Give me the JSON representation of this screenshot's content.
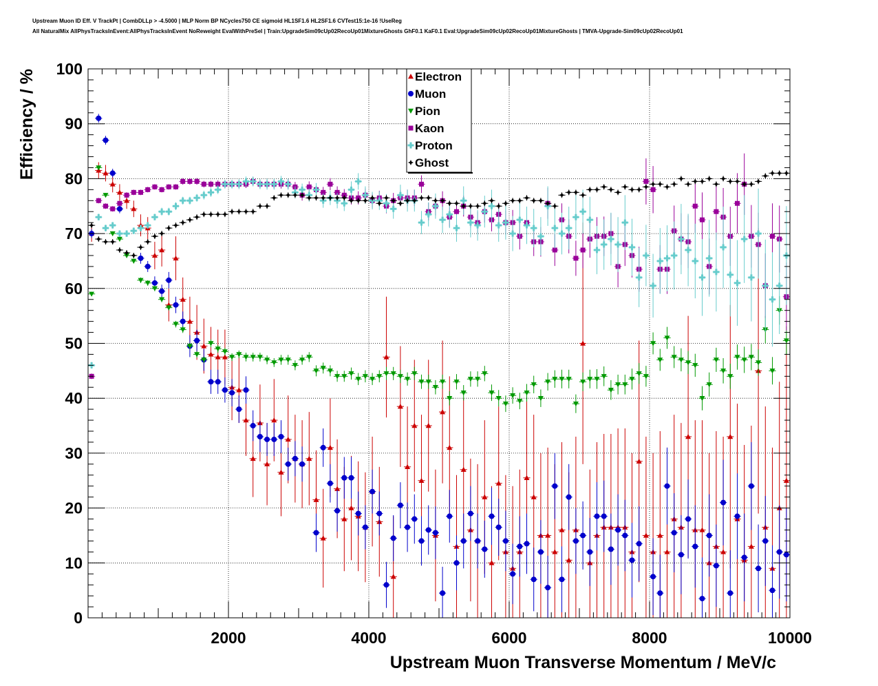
{
  "header": {
    "line1": "Upstream Muon ID Eff. V TrackPt | CombDLLp > -4.5000 | MLP Norm BP NCycles750 CE sigmoid HL1SF1.6 HL2SF1.6 CVTest15:1e-16 !UseReg",
    "line2": "All NaturalMix AllPhysTracksInEvent:AllPhysTracksInEvent NoReweight EvalWithPreSel | Train:UpgradeSim09cUp02RecoUp01MixtureGhosts GhF0.1 KaF0.1 Eval:UpgradeSim09cUp02RecoUp01MixtureGhosts | TMVA-Upgrade-Sim09cUp02RecoUp01"
  },
  "chart_data": {
    "type": "scatter",
    "xlabel": "Upstream Muon Transverse Momentum / MeV/c",
    "ylabel": "Efficiency / %",
    "xlim": [
      0,
      10000
    ],
    "ylim": [
      0,
      100
    ],
    "x_ticks": [
      2000,
      4000,
      6000,
      8000,
      10000
    ],
    "y_ticks": [
      0,
      10,
      20,
      30,
      40,
      50,
      60,
      70,
      80,
      90,
      100
    ],
    "grid": true,
    "legend_position": "top-center",
    "bin_width": 100,
    "x": [
      50,
      150,
      250,
      350,
      450,
      550,
      650,
      750,
      850,
      950,
      1050,
      1150,
      1250,
      1350,
      1450,
      1550,
      1650,
      1750,
      1850,
      1950,
      2050,
      2150,
      2250,
      2350,
      2450,
      2550,
      2650,
      2750,
      2850,
      2950,
      3050,
      3150,
      3250,
      3350,
      3450,
      3550,
      3650,
      3750,
      3850,
      3950,
      4050,
      4150,
      4250,
      4350,
      4450,
      4550,
      4650,
      4750,
      4850,
      4950,
      5050,
      5150,
      5250,
      5350,
      5450,
      5550,
      5650,
      5750,
      5850,
      5950,
      6050,
      6150,
      6250,
      6350,
      6450,
      6550,
      6650,
      6750,
      6850,
      6950,
      7050,
      7150,
      7250,
      7350,
      7450,
      7550,
      7650,
      7750,
      7850,
      7950,
      8050,
      8150,
      8250,
      8350,
      8450,
      8550,
      8650,
      8750,
      8850,
      8950,
      9050,
      9150,
      9250,
      9350,
      9450,
      9550,
      9650,
      9750,
      9850,
      9950
    ],
    "series": [
      {
        "name": "Electron",
        "color": "#cc0000",
        "marker": "triangle-up",
        "values": [
          70,
          81.5,
          81,
          79,
          77.5,
          76,
          74.5,
          71.5,
          71,
          66,
          67,
          57,
          65.5,
          58,
          54,
          52,
          49.5,
          48,
          47.5,
          47.5,
          42,
          41.5,
          36,
          29,
          35.5,
          28,
          36,
          26.5,
          32.5,
          29,
          28,
          29,
          21.5,
          14.5,
          31,
          23.5,
          18,
          20,
          18.5,
          16.5,
          23,
          17.5,
          47.5,
          7.5,
          38.5,
          27.5,
          35,
          25,
          35,
          15,
          37.5,
          31,
          13,
          27,
          16,
          14,
          22,
          10,
          24.5,
          12,
          9,
          12,
          25.5,
          22,
          15,
          15,
          12,
          16,
          10.5,
          16,
          50,
          10,
          15,
          16.5,
          16.5,
          16.5,
          16.5,
          12,
          28.5,
          15,
          12,
          15,
          12,
          18,
          16.5,
          33,
          16,
          16,
          10,
          13,
          12,
          33,
          18,
          10.5,
          13,
          45,
          16.5,
          9,
          20,
          25
        ],
        "err": [
          1.5,
          1.5,
          1.5,
          1.5,
          1.5,
          1.5,
          1.5,
          2,
          2,
          2.5,
          3,
          3,
          4,
          4,
          4.5,
          5,
          5,
          5,
          5,
          5,
          6,
          6,
          6.5,
          7,
          7,
          7.5,
          7.5,
          8,
          8,
          8,
          8,
          8.5,
          9,
          9,
          9,
          9,
          9.5,
          9.5,
          10,
          10,
          10,
          10,
          11,
          11,
          11,
          11,
          12,
          12,
          12,
          12,
          13,
          13,
          13,
          13,
          13,
          14,
          14,
          14,
          14,
          14,
          15,
          15,
          15,
          15,
          15,
          16,
          16,
          16,
          16,
          17,
          22,
          17,
          17,
          17,
          17,
          18,
          18,
          18,
          22,
          18,
          18,
          19,
          19,
          19,
          19,
          22,
          20,
          20,
          20,
          21,
          21,
          24,
          21,
          21,
          22,
          26,
          22,
          22,
          23,
          25
        ]
      },
      {
        "name": "Muon",
        "color": "#0000cc",
        "marker": "circle",
        "values": [
          70,
          91,
          87,
          81,
          74.5,
          null,
          null,
          65.5,
          64,
          61,
          59.5,
          61.5,
          57,
          54,
          49.5,
          50.5,
          47,
          43,
          43,
          41.5,
          41,
          38,
          41.5,
          35,
          33,
          32.5,
          32.5,
          33,
          28,
          29,
          28,
          null,
          15.5,
          31,
          24.5,
          19.5,
          25.5,
          25.5,
          19,
          16.5,
          23,
          19,
          6,
          14.5,
          20.5,
          16.5,
          18,
          14,
          16,
          15.5,
          4.5,
          18.5,
          10,
          14,
          19,
          14,
          12.5,
          18.5,
          16.5,
          14,
          8,
          13,
          13.5,
          7,
          12,
          5.5,
          24,
          7,
          22,
          14,
          15,
          12,
          18.5,
          18.5,
          12.5,
          16,
          15,
          10.5,
          13.5,
          null,
          7.5,
          4.5,
          24,
          15.5,
          11.5,
          18,
          13,
          3.5,
          15,
          9.5,
          21,
          4.5,
          18.5,
          11,
          24,
          9,
          14,
          5,
          12,
          11.5
        ],
        "err": [
          0.8,
          0.8,
          0.8,
          0.8,
          0.8,
          null,
          null,
          1,
          1,
          1.2,
          1.2,
          1.5,
          1.5,
          1.8,
          2,
          2,
          2,
          2.2,
          2.2,
          2.3,
          2.5,
          2.5,
          2.5,
          2.8,
          2.8,
          3,
          3,
          3,
          3,
          3.2,
          3.2,
          null,
          3.5,
          3.5,
          3.5,
          3.8,
          3.8,
          3.8,
          4,
          4,
          4,
          4,
          4.2,
          4.2,
          4.2,
          4.5,
          4.5,
          4.5,
          4.5,
          4.8,
          4.8,
          4.8,
          5,
          5,
          5,
          5,
          5.2,
          5.2,
          5.2,
          5.5,
          5.5,
          5.5,
          5.5,
          5.8,
          5.8,
          5.8,
          6,
          6,
          6,
          6,
          6.2,
          6.2,
          6.2,
          6.5,
          6.5,
          6.5,
          6.5,
          6.8,
          6.8,
          null,
          7,
          7,
          7,
          7.2,
          7.2,
          7.2,
          7.5,
          7.5,
          7.5,
          7.5,
          7.8,
          7.8,
          7.8,
          8,
          8,
          8,
          8.2,
          8.2,
          8.5,
          8.5
        ]
      },
      {
        "name": "Pion",
        "color": "#009900",
        "marker": "triangle-down",
        "values": [
          59,
          82,
          77,
          70,
          69,
          66,
          65,
          61.5,
          61,
          60,
          58,
          56.5,
          53.5,
          52.5,
          49.5,
          48,
          47,
          50,
          49,
          48.5,
          47.5,
          48,
          47.5,
          47.5,
          47.5,
          47,
          46.5,
          47,
          47,
          46,
          47,
          47.5,
          45,
          45.5,
          45,
          44,
          44,
          44.5,
          43.5,
          44,
          43.5,
          44,
          44.5,
          44.5,
          44,
          43.5,
          44.5,
          43,
          43,
          42,
          43,
          40,
          43,
          41,
          43.5,
          43.5,
          44.5,
          41,
          40,
          39,
          40.5,
          39.5,
          41,
          42.5,
          40,
          43,
          43.5,
          43.5,
          43.5,
          39,
          43,
          43.5,
          43.5,
          44,
          41.5,
          42.5,
          42.5,
          43.5,
          44.5,
          44,
          50,
          47,
          51,
          47.5,
          47,
          46.5,
          46,
          40,
          42.5,
          47,
          45,
          44,
          47.5,
          47,
          47.5,
          46.5,
          52.5,
          45,
          56,
          50.5
        ],
        "err": [
          0.4,
          0.4,
          0.4,
          0.4,
          0.4,
          0.4,
          0.4,
          0.5,
          0.5,
          0.5,
          0.5,
          0.5,
          0.6,
          0.6,
          0.6,
          0.6,
          0.6,
          0.7,
          0.7,
          0.7,
          0.7,
          0.7,
          0.8,
          0.8,
          0.8,
          0.8,
          0.8,
          0.9,
          0.9,
          0.9,
          0.9,
          0.9,
          1,
          1,
          1,
          1,
          1,
          1.1,
          1.1,
          1.1,
          1.1,
          1.1,
          1.2,
          1.2,
          1.2,
          1.2,
          1.2,
          1.3,
          1.3,
          1.3,
          1.3,
          1.3,
          1.4,
          1.4,
          1.4,
          1.4,
          1.4,
          1.5,
          1.5,
          1.5,
          1.5,
          1.5,
          1.6,
          1.6,
          1.6,
          1.6,
          1.6,
          1.7,
          1.7,
          1.7,
          1.7,
          1.7,
          1.8,
          1.8,
          1.8,
          1.8,
          1.8,
          1.9,
          1.9,
          1.9,
          2,
          2,
          2,
          2,
          2.1,
          2.1,
          2.1,
          2.2,
          2.2,
          2.2,
          2.3,
          2.3,
          2.3,
          2.4,
          2.4,
          2.4,
          2.5,
          2.5,
          2.6,
          2.6
        ]
      },
      {
        "name": "Kaon",
        "color": "#990099",
        "marker": "square",
        "values": [
          44,
          76,
          75,
          74.5,
          75.5,
          77,
          77.5,
          77.5,
          78,
          78.5,
          78,
          78.5,
          78.5,
          79.5,
          79.5,
          79.5,
          79,
          79,
          79,
          79,
          79,
          79,
          79,
          79.5,
          79,
          79,
          79,
          79,
          79,
          78.5,
          77,
          78.5,
          78,
          77.5,
          79,
          77.5,
          77,
          76.5,
          76.5,
          77,
          76,
          76.5,
          75,
          76,
          76.5,
          76.5,
          76.5,
          79,
          74,
          75,
          76,
          73,
          74,
          75,
          73,
          72,
          74,
          72.5,
          73.5,
          72,
          72,
          69.5,
          72,
          68.5,
          68.5,
          75.5,
          67,
          72.5,
          69.5,
          65.5,
          67,
          69,
          69.5,
          69.5,
          70,
          64,
          68,
          66,
          63.5,
          79.5,
          78,
          63.5,
          63.5,
          70.5,
          69,
          68.5,
          75,
          72.5,
          64,
          74,
          73,
          69.5,
          75.5,
          79,
          69.5,
          68,
          60.5,
          69.5,
          69,
          58.5
        ],
        "err": [
          0.5,
          0.5,
          0.5,
          0.5,
          0.5,
          0.5,
          0.5,
          0.5,
          0.5,
          0.5,
          0.5,
          0.5,
          0.5,
          0.6,
          0.6,
          0.6,
          0.6,
          0.6,
          0.7,
          0.7,
          0.7,
          0.7,
          0.7,
          0.8,
          0.8,
          0.8,
          0.8,
          0.8,
          0.9,
          0.9,
          1,
          1,
          1,
          1,
          1.1,
          1.1,
          1.1,
          1.2,
          1.2,
          1.2,
          1.3,
          1.3,
          1.3,
          1.4,
          1.4,
          1.5,
          1.5,
          1.6,
          1.6,
          1.7,
          1.7,
          1.8,
          1.8,
          1.9,
          1.9,
          2,
          2,
          2.1,
          2.1,
          2.2,
          2.3,
          2.4,
          2.5,
          2.6,
          2.7,
          2.8,
          2.9,
          3,
          3.1,
          3.2,
          3.3,
          3.4,
          3.5,
          3.6,
          3.7,
          3.8,
          3.9,
          4,
          4.1,
          4.2,
          4.3,
          4.4,
          4.5,
          4.6,
          4.7,
          4.8,
          4.9,
          5,
          5.1,
          5.2,
          5.3,
          5.4,
          5.5,
          5.6,
          5.7,
          5.8,
          5.9,
          6,
          6.1,
          6.2
        ]
      },
      {
        "name": "Proton",
        "color": "#66cccc",
        "marker": "cross",
        "values": [
          46,
          73,
          71,
          71.5,
          70,
          70,
          70.5,
          71,
          71.5,
          73,
          74,
          74,
          75,
          76,
          76,
          76.5,
          77,
          77.5,
          78,
          79,
          79,
          79,
          79.5,
          79.5,
          79,
          79,
          79,
          79.5,
          79,
          77.5,
          78,
          77,
          78,
          76,
          76.5,
          76,
          75.5,
          78,
          79.5,
          77,
          76,
          76,
          75.5,
          74.5,
          77,
          76,
          76,
          72,
          73.5,
          75,
          72.5,
          73.5,
          71,
          76,
          72,
          71.5,
          74,
          75,
          71.5,
          72,
          70,
          72.5,
          71.5,
          71,
          69.5,
          75,
          71,
          70,
          71,
          73,
          74,
          72.5,
          67,
          68,
          69,
          68,
          72,
          67.5,
          62,
          66,
          60.5,
          65,
          65.5,
          66,
          69,
          67,
          65,
          62,
          65.5,
          63,
          67.5,
          62.5,
          61,
          69,
          62,
          70,
          60.5,
          58,
          60.5,
          66
        ],
        "err": [
          0.6,
          0.6,
          0.6,
          0.6,
          0.6,
          0.6,
          0.6,
          0.6,
          0.6,
          0.6,
          0.7,
          0.7,
          0.7,
          0.7,
          0.7,
          0.7,
          0.8,
          0.8,
          0.8,
          0.8,
          0.8,
          0.9,
          0.9,
          0.9,
          0.9,
          1,
          1,
          1,
          1,
          1.1,
          1.1,
          1.2,
          1.2,
          1.3,
          1.3,
          1.4,
          1.4,
          1.5,
          1.5,
          1.6,
          1.6,
          1.7,
          1.7,
          1.8,
          1.9,
          2,
          2,
          2.1,
          2.2,
          2.3,
          2.4,
          2.5,
          2.5,
          2.6,
          2.7,
          2.8,
          2.9,
          3,
          3,
          3.1,
          3.2,
          3.3,
          3.4,
          3.5,
          3.5,
          3.6,
          3.7,
          3.8,
          3.9,
          4,
          4,
          4.2,
          4.4,
          4.6,
          4.8,
          5,
          5,
          5.2,
          5.4,
          5.6,
          5.8,
          6,
          6,
          6.2,
          6.4,
          6.6,
          6.8,
          7,
          7,
          7.2,
          7.4,
          7.6,
          7.8,
          8,
          8,
          8.2,
          8.4,
          8.6,
          8.8,
          9
        ]
      },
      {
        "name": "Ghost",
        "color": "#000000",
        "marker": "star",
        "values": [
          71.5,
          69,
          68.5,
          68.5,
          67,
          66.5,
          66,
          67.5,
          68.5,
          69.5,
          70,
          71,
          71.5,
          72,
          72.5,
          73,
          73.5,
          73.5,
          73.5,
          73.5,
          74,
          74,
          74,
          74,
          75,
          75,
          76.5,
          77,
          77,
          77,
          77,
          76.5,
          76.5,
          76.5,
          76.5,
          76.5,
          76.5,
          76,
          76,
          76,
          76.5,
          75.5,
          76.5,
          76,
          75.5,
          76,
          76,
          76.5,
          76.5,
          76,
          76,
          75.5,
          75.5,
          75,
          75,
          75,
          75.5,
          76,
          75,
          75.5,
          76,
          76,
          76.5,
          76,
          76,
          75.5,
          75,
          77,
          77.5,
          77.5,
          77,
          78,
          78,
          78.5,
          78,
          77.5,
          78.5,
          78,
          78,
          78.5,
          79,
          79,
          78.5,
          79,
          80,
          79,
          79.5,
          79.5,
          80,
          79,
          80,
          79.5,
          79.5,
          79,
          79,
          79.5,
          80.5,
          81,
          81,
          81
        ]
      }
    ]
  }
}
